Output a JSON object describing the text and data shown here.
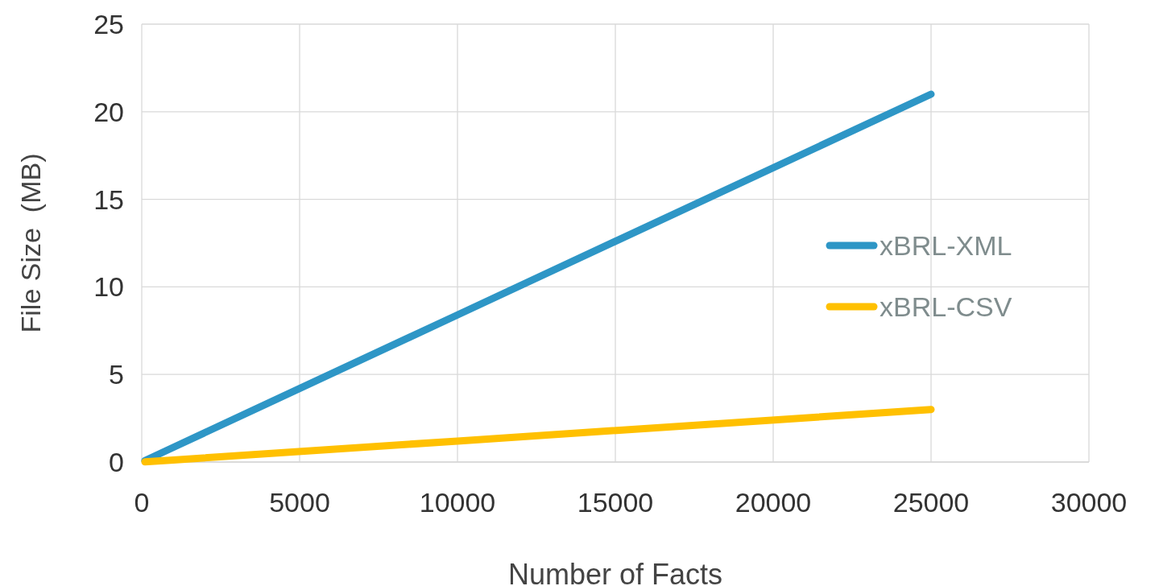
{
  "chart_data": {
    "type": "line",
    "xlabel": "Number of Facts",
    "ylabel": "File Size  (MB)",
    "x": [
      100,
      1000,
      10000,
      25000
    ],
    "series": [
      {
        "name": "xBRL-XML",
        "color": "#2e96c6",
        "values": [
          0.08,
          0.84,
          8.4,
          21
        ]
      },
      {
        "name": "xBRL-CSV",
        "color": "#ffc000",
        "values": [
          0.01,
          0.12,
          1.2,
          3
        ]
      }
    ],
    "xlim": [
      0,
      30000
    ],
    "xticks": [
      0,
      5000,
      10000,
      15000,
      20000,
      25000,
      30000
    ],
    "ylim": [
      0,
      25
    ],
    "yticks": [
      0,
      5,
      10,
      15,
      20,
      25
    ],
    "grid": true,
    "legend": "right",
    "marker": "none",
    "line_style": "solid"
  }
}
